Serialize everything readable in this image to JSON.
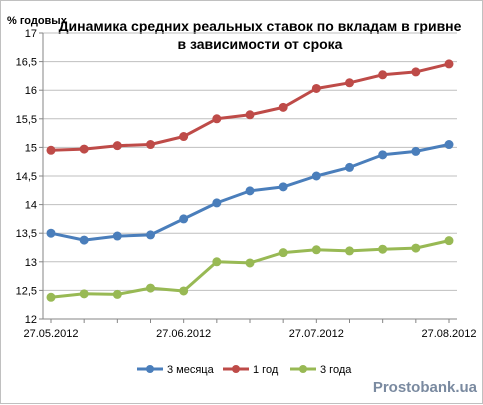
{
  "chart_data": {
    "type": "line",
    "title_line1": "Динамика средних реальных ставок по вкладам в гривне",
    "title_line2": "в зависимости от срока",
    "y_unit_label": "% годовых",
    "ylim": [
      12,
      17
    ],
    "y_ticks": [
      "12",
      "12,5",
      "13",
      "13,5",
      "14",
      "14,5",
      "15",
      "15,5",
      "16",
      "16,5",
      "17"
    ],
    "x_tick_labels": [
      "27.05.2012",
      "27.06.2012",
      "27.07.2012",
      "27.08.2012"
    ],
    "grid": "horizontal",
    "legend_position": "bottom",
    "series": [
      {
        "name": "3 месяца",
        "color": "#4a7ebb",
        "values": [
          13.5,
          13.38,
          13.45,
          13.47,
          13.75,
          14.03,
          14.24,
          14.31,
          14.5,
          14.65,
          14.87,
          14.93,
          15.05
        ]
      },
      {
        "name": "1 год",
        "color": "#be4b48",
        "values": [
          14.95,
          14.97,
          15.03,
          15.05,
          15.19,
          15.5,
          15.57,
          15.7,
          16.03,
          16.13,
          16.27,
          16.32,
          16.46
        ]
      },
      {
        "name": "3 года",
        "color": "#98b954",
        "values": [
          12.38,
          12.44,
          12.43,
          12.54,
          12.49,
          13.0,
          12.98,
          13.16,
          13.21,
          13.19,
          13.22,
          13.24,
          13.37
        ]
      }
    ]
  },
  "watermark": "Prostobank.ua"
}
